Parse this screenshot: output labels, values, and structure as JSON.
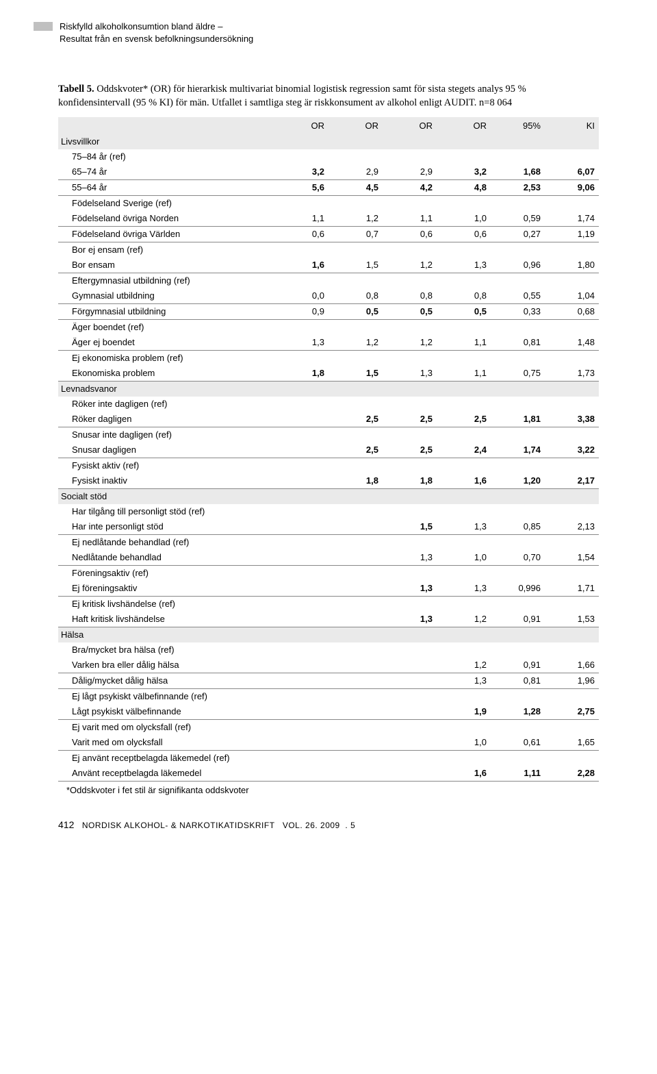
{
  "running_header": {
    "line1": "Riskfylld alkoholkonsumtion bland äldre –",
    "line2": "Resultat från en svensk befolkningsundersökning"
  },
  "caption": {
    "label": "Tabell 5.",
    "text": " Oddskvoter* (OR) för hierarkisk multivariat binomial logistisk regression samt för sista stegets analys 95 % konfidensintervall (95 % KI) för män. Utfallet i samtliga steg är riskkonsument av alkohol enligt AUDIT. n=8 064"
  },
  "columns": [
    "",
    "OR",
    "OR",
    "OR",
    "OR",
    "95%",
    "KI"
  ],
  "rows": [
    {
      "t": "section",
      "c": [
        "Livsvillkor",
        "",
        "",
        "",
        "",
        "",
        ""
      ]
    },
    {
      "t": "data",
      "nb": true,
      "b": [],
      "c": [
        "75–84 år (ref)",
        "",
        "",
        "",
        "",
        "",
        ""
      ]
    },
    {
      "t": "data",
      "b": [
        1,
        4,
        5,
        6
      ],
      "c": [
        "65–74 år",
        "3,2",
        "2,9",
        "2,9",
        "3,2",
        "1,68",
        "6,07"
      ]
    },
    {
      "t": "data",
      "b": [
        1,
        2,
        3,
        4,
        5,
        6
      ],
      "c": [
        "55–64 år",
        "5,6",
        "4,5",
        "4,2",
        "4,8",
        "2,53",
        "9,06"
      ]
    },
    {
      "t": "data",
      "nb": true,
      "b": [],
      "c": [
        "Födelseland Sverige (ref)",
        "",
        "",
        "",
        "",
        "",
        ""
      ]
    },
    {
      "t": "data",
      "b": [],
      "c": [
        "Födelseland övriga Norden",
        "1,1",
        "1,2",
        "1,1",
        "1,0",
        "0,59",
        "1,74"
      ]
    },
    {
      "t": "data",
      "b": [],
      "c": [
        "Födelseland övriga Världen",
        "0,6",
        "0,7",
        "0,6",
        "0,6",
        "0,27",
        "1,19"
      ]
    },
    {
      "t": "data",
      "nb": true,
      "b": [],
      "c": [
        "Bor ej ensam (ref)",
        "",
        "",
        "",
        "",
        "",
        ""
      ]
    },
    {
      "t": "data",
      "b": [
        1
      ],
      "c": [
        "Bor ensam",
        "1,6",
        "1,5",
        "1,2",
        "1,3",
        "0,96",
        "1,80"
      ]
    },
    {
      "t": "data",
      "nb": true,
      "b": [],
      "c": [
        "Eftergymnasial utbildning (ref)",
        "",
        "",
        "",
        "",
        "",
        ""
      ]
    },
    {
      "t": "data",
      "b": [],
      "c": [
        "Gymnasial utbildning",
        "0,0",
        "0,8",
        "0,8",
        "0,8",
        "0,55",
        "1,04"
      ]
    },
    {
      "t": "data",
      "b": [
        2,
        3,
        4
      ],
      "c": [
        "Förgymnasial utbildning",
        "0,9",
        "0,5",
        "0,5",
        "0,5",
        "0,33",
        "0,68"
      ]
    },
    {
      "t": "data",
      "nb": true,
      "b": [],
      "c": [
        "Äger boendet (ref)",
        "",
        "",
        "",
        "",
        "",
        ""
      ]
    },
    {
      "t": "data",
      "b": [],
      "c": [
        "Äger ej boendet",
        "1,3",
        "1,2",
        "1,2",
        "1,1",
        "0,81",
        "1,48"
      ]
    },
    {
      "t": "data",
      "nb": true,
      "b": [],
      "c": [
        "Ej ekonomiska problem (ref)",
        "",
        "",
        "",
        "",
        "",
        ""
      ]
    },
    {
      "t": "data",
      "b": [
        1,
        2
      ],
      "c": [
        "Ekonomiska problem",
        "1,8",
        "1,5",
        "1,3",
        "1,1",
        "0,75",
        "1,73"
      ]
    },
    {
      "t": "section",
      "c": [
        "Levnadsvanor",
        "",
        "",
        "",
        "",
        "",
        ""
      ]
    },
    {
      "t": "data",
      "nb": true,
      "b": [],
      "c": [
        "Röker inte dagligen (ref)",
        "",
        "",
        "",
        "",
        "",
        ""
      ]
    },
    {
      "t": "data",
      "b": [
        2,
        3,
        4,
        5,
        6
      ],
      "c": [
        "Röker dagligen",
        "",
        "2,5",
        "2,5",
        "2,5",
        "1,81",
        "3,38"
      ]
    },
    {
      "t": "data",
      "nb": true,
      "b": [],
      "c": [
        "Snusar inte dagligen (ref)",
        "",
        "",
        "",
        "",
        "",
        ""
      ]
    },
    {
      "t": "data",
      "b": [
        2,
        3,
        4,
        5,
        6
      ],
      "c": [
        "Snusar dagligen",
        "",
        "2,5",
        "2,5",
        "2,4",
        "1,74",
        "3,22"
      ]
    },
    {
      "t": "data",
      "nb": true,
      "b": [],
      "c": [
        "Fysiskt aktiv (ref)",
        "",
        "",
        "",
        "",
        "",
        ""
      ]
    },
    {
      "t": "data",
      "b": [
        2,
        3,
        4,
        5,
        6
      ],
      "c": [
        "Fysiskt inaktiv",
        "",
        "1,8",
        "1,8",
        "1,6",
        "1,20",
        "2,17"
      ]
    },
    {
      "t": "section",
      "c": [
        "Socialt stöd",
        "",
        "",
        "",
        "",
        "",
        ""
      ]
    },
    {
      "t": "data",
      "nb": true,
      "b": [],
      "c": [
        "Har tilgång till personligt stöd (ref)",
        "",
        "",
        "",
        "",
        "",
        ""
      ]
    },
    {
      "t": "data",
      "b": [
        3
      ],
      "c": [
        "Har inte personligt stöd",
        "",
        "",
        "1,5",
        "1,3",
        "0,85",
        "2,13"
      ]
    },
    {
      "t": "data",
      "nb": true,
      "b": [],
      "c": [
        "Ej nedlåtande behandlad (ref)",
        "",
        "",
        "",
        "",
        "",
        ""
      ]
    },
    {
      "t": "data",
      "b": [],
      "c": [
        "Nedlåtande behandlad",
        "",
        "",
        "1,3",
        "1,0",
        "0,70",
        "1,54"
      ]
    },
    {
      "t": "data",
      "nb": true,
      "b": [],
      "c": [
        "Föreningsaktiv (ref)",
        "",
        "",
        "",
        "",
        "",
        ""
      ]
    },
    {
      "t": "data",
      "b": [
        3
      ],
      "c": [
        "Ej föreningsaktiv",
        "",
        "",
        "1,3",
        "1,3",
        "0,996",
        "1,71"
      ]
    },
    {
      "t": "data",
      "nb": true,
      "b": [],
      "c": [
        "Ej kritisk livshändelse (ref)",
        "",
        "",
        "",
        "",
        "",
        ""
      ]
    },
    {
      "t": "data",
      "b": [
        3
      ],
      "c": [
        "Haft kritisk livshändelse",
        "",
        "",
        "1,3",
        "1,2",
        "0,91",
        "1,53"
      ]
    },
    {
      "t": "section",
      "c": [
        "Hälsa",
        "",
        "",
        "",
        "",
        "",
        ""
      ]
    },
    {
      "t": "data",
      "nb": true,
      "b": [],
      "c": [
        "Bra/mycket bra hälsa (ref)",
        "",
        "",
        "",
        "",
        "",
        ""
      ]
    },
    {
      "t": "data",
      "b": [],
      "c": [
        "Varken bra eller dålig hälsa",
        "",
        "",
        "",
        "1,2",
        "0,91",
        "1,66"
      ]
    },
    {
      "t": "data",
      "b": [],
      "c": [
        "Dålig/mycket dålig hälsa",
        "",
        "",
        "",
        "1,3",
        "0,81",
        "1,96"
      ]
    },
    {
      "t": "data",
      "nb": true,
      "b": [],
      "c": [
        "Ej lågt psykiskt välbefinnande (ref)",
        "",
        "",
        "",
        "",
        "",
        ""
      ]
    },
    {
      "t": "data",
      "b": [
        4,
        5,
        6
      ],
      "c": [
        "Lågt psykiskt välbefinnande",
        "",
        "",
        "",
        "1,9",
        "1,28",
        "2,75"
      ]
    },
    {
      "t": "data",
      "nb": true,
      "b": [],
      "c": [
        "Ej varit med om olycksfall (ref)",
        "",
        "",
        "",
        "",
        "",
        ""
      ]
    },
    {
      "t": "data",
      "b": [],
      "c": [
        "Varit med om olycksfall",
        "",
        "",
        "",
        "1,0",
        "0,61",
        "1,65"
      ]
    },
    {
      "t": "data",
      "nb": true,
      "b": [],
      "c": [
        "Ej använt receptbelagda läkemedel (ref)",
        "",
        "",
        "",
        "",
        "",
        ""
      ]
    },
    {
      "t": "data",
      "b": [
        4,
        5,
        6
      ],
      "c": [
        "Använt receptbelagda läkemedel",
        "",
        "",
        "",
        "1,6",
        "1,11",
        "2,28"
      ]
    }
  ],
  "footnote": "*Oddskvoter i fet stil är signifikanta oddskvoter",
  "footer": {
    "page": "412",
    "journal": "NORDISK ALKOHOL- & NARKOTIKATIDSKRIFT",
    "vol": "VOL. 26. 2009",
    "issue": "5"
  }
}
